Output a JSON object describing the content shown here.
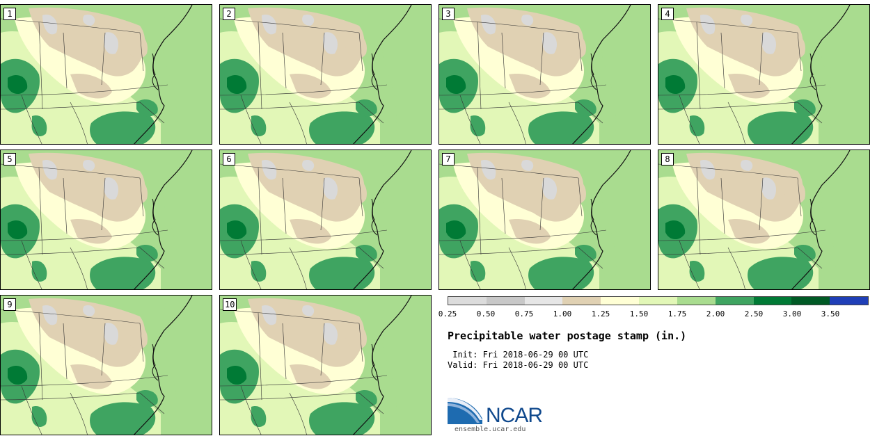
{
  "panels": [
    {
      "label": "1"
    },
    {
      "label": "2"
    },
    {
      "label": "3"
    },
    {
      "label": "4"
    },
    {
      "label": "5"
    },
    {
      "label": "6"
    },
    {
      "label": "7"
    },
    {
      "label": "8"
    },
    {
      "label": "9"
    },
    {
      "label": "10"
    }
  ],
  "legend": {
    "colors": [
      "#dcdcdc",
      "#c8c8c8",
      "#e6e6e6",
      "#e0d1b3",
      "#ffffd5",
      "#e2f7b7",
      "#a9dc8f",
      "#3fa461",
      "#007a35",
      "#005a25",
      "#1f3fb7"
    ],
    "ticks": [
      "0.25",
      "0.50",
      "0.75",
      "1.00",
      "1.25",
      "1.50",
      "1.75",
      "2.00",
      "2.50",
      "3.00",
      "3.50"
    ]
  },
  "title": "Precipitable water postage stamp (in.)",
  "init_line": " Init: Fri 2018-06-29 00 UTC",
  "valid_line": "Valid: Fri 2018-06-29 00 UTC",
  "logo": {
    "name": "NCAR",
    "url": "ensemble.ucar.edu"
  },
  "colors": {
    "tan": "#e0d1b3",
    "light_gray": "#d9d9d9",
    "pale_yellow": "#ffffd5",
    "light_green": "#e2f7b7",
    "mid_green": "#a9dc8f",
    "green": "#3fa461",
    "dark_green": "#007a35",
    "ncar_blue": "#10498d"
  }
}
